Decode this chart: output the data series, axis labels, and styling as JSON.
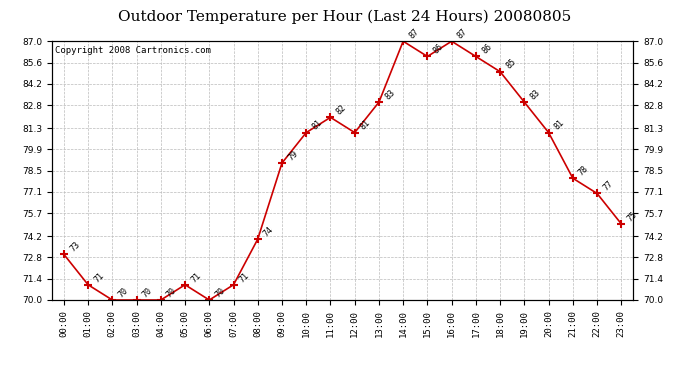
{
  "title": "Outdoor Temperature per Hour (Last 24 Hours) 20080805",
  "copyright": "Copyright 2008 Cartronics.com",
  "hours": [
    "00:00",
    "01:00",
    "02:00",
    "03:00",
    "04:00",
    "05:00",
    "06:00",
    "07:00",
    "08:00",
    "09:00",
    "10:00",
    "11:00",
    "12:00",
    "13:00",
    "14:00",
    "15:00",
    "16:00",
    "17:00",
    "18:00",
    "19:00",
    "20:00",
    "21:00",
    "22:00",
    "23:00"
  ],
  "temperatures": [
    73,
    71,
    70,
    70,
    70,
    71,
    70,
    71,
    74,
    79,
    81,
    82,
    81,
    83,
    87,
    86,
    87,
    86,
    85,
    83,
    81,
    78,
    77,
    75
  ],
  "ylim_min": 70.0,
  "ylim_max": 87.0,
  "yticks": [
    70.0,
    71.4,
    72.8,
    74.2,
    75.7,
    77.1,
    78.5,
    79.9,
    81.3,
    82.8,
    84.2,
    85.6,
    87.0
  ],
  "line_color": "#cc0000",
  "marker": "+",
  "marker_size": 6,
  "marker_linewidth": 1.5,
  "background_color": "#ffffff",
  "grid_color": "#bbbbbb",
  "title_fontsize": 11,
  "copyright_fontsize": 6.5,
  "label_fontsize": 6,
  "tick_fontsize": 6.5
}
